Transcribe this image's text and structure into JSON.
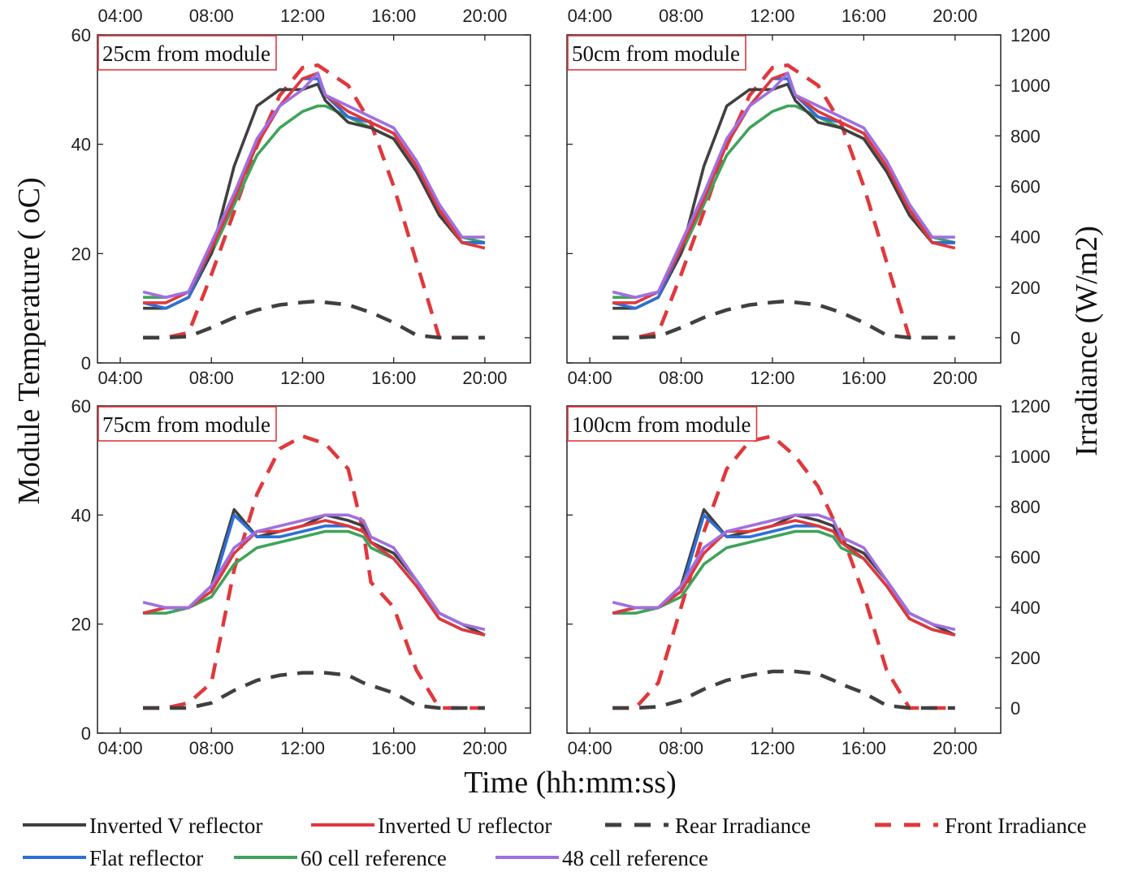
{
  "chart_data": {
    "type": "line",
    "xlabel": "Time (hh:mm:ss)",
    "ylabel_left": "Module Temperature ( oC)",
    "ylabel_right": "Irradiance (W/m2)",
    "x_ticks": [
      "04:00",
      "08:00",
      "12:00",
      "16:00",
      "20:00"
    ],
    "xlim": [
      "03:00",
      "22:00"
    ],
    "ylim_left": [
      0,
      60
    ],
    "ylim_right": [
      -100,
      1200
    ],
    "y_ticks_left": [
      "0",
      "20",
      "40",
      "60"
    ],
    "y_ticks_right": [
      "0",
      "200",
      "400",
      "600",
      "800",
      "1000",
      "1200"
    ],
    "grid": false,
    "legend_placement": "bottom",
    "series_styles": [
      {
        "name": "Inverted V reflector",
        "color": "#404040",
        "dash": "solid",
        "axis": "left"
      },
      {
        "name": "Inverted U reflector",
        "color": "#e0383c",
        "dash": "solid",
        "axis": "left"
      },
      {
        "name": "Rear Irradiance",
        "color": "#404040",
        "dash": "dashed",
        "axis": "right"
      },
      {
        "name": "Front Irradiance",
        "color": "#e0383c",
        "dash": "dashed",
        "axis": "right"
      },
      {
        "name": "Flat reflector",
        "color": "#2e6fd8",
        "dash": "solid",
        "axis": "left"
      },
      {
        "name": "60 cell  reference",
        "color": "#3fa35a",
        "dash": "solid",
        "axis": "left"
      },
      {
        "name": "48 cell  reference",
        "color": "#a06fe0",
        "dash": "solid",
        "axis": "left"
      }
    ],
    "panels": [
      {
        "label": "25cm from module",
        "x": [
          "05:00",
          "06:00",
          "07:00",
          "08:00",
          "09:00",
          "10:00",
          "11:00",
          "12:00",
          "12:40",
          "13:00",
          "14:00",
          "15:00",
          "16:00",
          "17:00",
          "18:00",
          "19:00",
          "20:00"
        ],
        "series": [
          {
            "name": "Inverted V reflector",
            "values": [
              10,
              10,
              12,
              20,
              36,
              47,
              50,
              50,
              51,
              48,
              44,
              43,
              41,
              35,
              27,
              22,
              22
            ]
          },
          {
            "name": "Inverted U reflector",
            "values": [
              11,
              11,
              13,
              21,
              30,
              40,
              47,
              52,
              53,
              49,
              46,
              44,
              42,
              36,
              28,
              22,
              21
            ]
          },
          {
            "name": "Flat reflector",
            "values": [
              11,
              10,
              12,
              21,
              30,
              40,
              47,
              52,
              52,
              49,
              45,
              44,
              42,
              36,
              28,
              22,
              22
            ]
          },
          {
            "name": "60 cell  reference",
            "values": [
              12,
              12,
              13,
              20,
              29,
              38,
              43,
              46,
              47,
              47,
              45,
              43,
              41,
              35,
              28,
              23,
              22
            ]
          },
          {
            "name": "48 cell  reference",
            "values": [
              13,
              12,
              13,
              22,
              31,
              41,
              47,
              50,
              53,
              49,
              47,
              45,
              43,
              37,
              29,
              23,
              23
            ]
          },
          {
            "name": "Rear Irradiance",
            "values": [
              0,
              0,
              5,
              40,
              80,
              110,
              130,
              140,
              145,
              140,
              130,
              100,
              60,
              10,
              0,
              0,
              0
            ]
          },
          {
            "name": "Front Irradiance",
            "values": [
              0,
              0,
              20,
              250,
              500,
              760,
              960,
              1070,
              1080,
              1060,
              1000,
              850,
              600,
              300,
              0,
              0,
              0
            ]
          }
        ]
      },
      {
        "label": "50cm from module",
        "x": [
          "05:00",
          "06:00",
          "07:00",
          "08:00",
          "09:00",
          "10:00",
          "11:00",
          "12:00",
          "12:40",
          "13:00",
          "14:00",
          "15:00",
          "16:00",
          "17:00",
          "18:00",
          "19:00",
          "20:00"
        ],
        "series": [
          {
            "name": "Inverted V reflector",
            "values": [
              10,
              10,
              12,
              20,
              36,
              47,
              50,
              50,
              51,
              48,
              44,
              43,
              41,
              35,
              27,
              22,
              22
            ]
          },
          {
            "name": "Inverted U reflector",
            "values": [
              11,
              11,
              13,
              21,
              30,
              40,
              47,
              52,
              53,
              49,
              46,
              44,
              42,
              36,
              28,
              22,
              21
            ]
          },
          {
            "name": "Flat reflector",
            "values": [
              11,
              10,
              12,
              21,
              30,
              40,
              47,
              52,
              52,
              49,
              45,
              44,
              42,
              36,
              28,
              22,
              22
            ]
          },
          {
            "name": "60 cell  reference",
            "values": [
              12,
              12,
              13,
              20,
              29,
              38,
              43,
              46,
              47,
              47,
              45,
              43,
              41,
              35,
              28,
              23,
              22
            ]
          },
          {
            "name": "48 cell  reference",
            "values": [
              13,
              12,
              13,
              22,
              31,
              41,
              47,
              50,
              53,
              49,
              47,
              45,
              43,
              37,
              29,
              23,
              23
            ]
          },
          {
            "name": "Rear Irradiance",
            "values": [
              0,
              0,
              5,
              40,
              80,
              110,
              130,
              140,
              145,
              140,
              130,
              100,
              60,
              10,
              0,
              0,
              0
            ]
          },
          {
            "name": "Front Irradiance",
            "values": [
              0,
              0,
              20,
              250,
              500,
              760,
              960,
              1070,
              1080,
              1060,
              1000,
              850,
              600,
              300,
              0,
              0,
              0
            ]
          }
        ]
      },
      {
        "label": "75cm from module",
        "x": [
          "05:00",
          "06:00",
          "07:00",
          "08:00",
          "09:00",
          "10:00",
          "11:00",
          "12:00",
          "13:00",
          "14:00",
          "14:40",
          "15:00",
          "16:00",
          "17:00",
          "18:00",
          "19:00",
          "20:00"
        ],
        "series": [
          {
            "name": "Inverted V reflector",
            "values": [
              22,
              23,
              23,
              27,
              41,
              36,
              37,
              38,
              40,
              39,
              38,
              35,
              33,
              28,
              22,
              20,
              18
            ]
          },
          {
            "name": "Inverted U reflector",
            "values": [
              22,
              23,
              23,
              26,
              33,
              37,
              37,
              38,
              39,
              38,
              37,
              35,
              32,
              27,
              21,
              19,
              18
            ]
          },
          {
            "name": "Flat reflector",
            "values": [
              22,
              23,
              23,
              26,
              40,
              36,
              36,
              37,
              38,
              38,
              37,
              35,
              32,
              27,
              21,
              19,
              18
            ]
          },
          {
            "name": "60 cell  reference",
            "values": [
              22,
              22,
              23,
              25,
              31,
              34,
              35,
              36,
              37,
              37,
              36,
              34,
              32,
              27,
              21,
              19,
              18
            ]
          },
          {
            "name": "48 cell  reference",
            "values": [
              24,
              23,
              23,
              27,
              34,
              37,
              38,
              39,
              40,
              40,
              39,
              36,
              34,
              28,
              22,
              20,
              19
            ]
          },
          {
            "name": "Rear Irradiance",
            "values": [
              0,
              0,
              0,
              20,
              70,
              110,
              130,
              140,
              140,
              130,
              100,
              90,
              60,
              10,
              0,
              0,
              0
            ]
          },
          {
            "name": "Front Irradiance",
            "values": [
              0,
              0,
              20,
              100,
              550,
              850,
              1030,
              1080,
              1050,
              950,
              700,
              500,
              400,
              150,
              0,
              0,
              0
            ]
          }
        ]
      },
      {
        "label": "100cm from module",
        "x": [
          "05:00",
          "06:00",
          "07:00",
          "08:00",
          "09:00",
          "10:00",
          "11:00",
          "12:00",
          "13:00",
          "14:00",
          "14:40",
          "15:00",
          "16:00",
          "17:00",
          "18:00",
          "19:00",
          "20:00"
        ],
        "series": [
          {
            "name": "Inverted V reflector",
            "values": [
              22,
              23,
              23,
              27,
              41,
              36,
              37,
              38,
              40,
              39,
              38,
              35,
              33,
              28,
              22,
              20,
              18
            ]
          },
          {
            "name": "Inverted U reflector",
            "values": [
              22,
              23,
              23,
              26,
              33,
              37,
              37,
              38,
              39,
              38,
              37,
              35,
              32,
              27,
              21,
              19,
              18
            ]
          },
          {
            "name": "Flat reflector",
            "values": [
              22,
              23,
              23,
              26,
              40,
              36,
              36,
              37,
              38,
              38,
              37,
              35,
              32,
              27,
              21,
              19,
              18
            ]
          },
          {
            "name": "60 cell  reference",
            "values": [
              22,
              22,
              23,
              25,
              31,
              34,
              35,
              36,
              37,
              37,
              36,
              34,
              32,
              27,
              21,
              19,
              18
            ]
          },
          {
            "name": "48 cell  reference",
            "values": [
              24,
              23,
              23,
              27,
              34,
              37,
              38,
              39,
              40,
              40,
              39,
              36,
              34,
              28,
              22,
              20,
              19
            ]
          },
          {
            "name": "Rear Irradiance",
            "values": [
              0,
              0,
              5,
              30,
              75,
              110,
              130,
              145,
              145,
              135,
              110,
              95,
              60,
              10,
              0,
              0,
              0
            ]
          },
          {
            "name": "Front Irradiance",
            "values": [
              0,
              0,
              100,
              400,
              700,
              950,
              1060,
              1080,
              1000,
              880,
              750,
              700,
              450,
              150,
              0,
              0,
              0
            ]
          }
        ]
      }
    ]
  }
}
